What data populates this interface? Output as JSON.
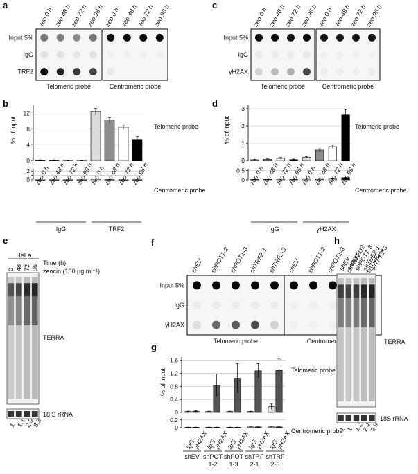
{
  "panels": {
    "a": {
      "letter": "a",
      "cols": [
        "zeo 0 h",
        "zeo 48 h",
        "zeo 72 h",
        "zeo 96 h",
        "zeo 0 h",
        "zeo 48 h",
        "zeo 72 h",
        "zeo 96 h"
      ],
      "rows": [
        "Input 5%",
        "IgG",
        "TRF2"
      ],
      "probe_left": "Telomeric probe",
      "probe_right": "Centromeric probe",
      "dots": [
        [
          0.55,
          0.5,
          0.45,
          0.55,
          1,
          1,
          1,
          1
        ],
        [
          0.08,
          0.08,
          0.06,
          0.08,
          0.02,
          0.02,
          0.02,
          0.02
        ],
        [
          1,
          0.9,
          0.8,
          0.75,
          0.05,
          0,
          0,
          0
        ]
      ]
    },
    "c": {
      "letter": "c",
      "cols": [
        "zeo 0 h",
        "zeo 48 h",
        "zeo 72 h",
        "zeo 96 h",
        "zeo 0 h",
        "zeo 48 h",
        "zeo 72 h",
        "zeo 96 h"
      ],
      "rows": [
        "Input 5%",
        "IgG",
        "γH2AX"
      ],
      "probe_left": "Telomeric probe",
      "probe_right": "Centromeric probe",
      "dots": [
        [
          1,
          1,
          0.95,
          1,
          0.95,
          0.95,
          0.95,
          0.95
        ],
        [
          0.04,
          0.04,
          0.04,
          0.05,
          0.02,
          0.02,
          0.02,
          0.02
        ],
        [
          0.15,
          0.25,
          0.3,
          0.75,
          0.03,
          0.03,
          0.03,
          0.04
        ]
      ]
    },
    "e": {
      "letter": "e",
      "cell": "HeLa",
      "lanes": [
        "0",
        "48",
        "72",
        "96"
      ],
      "time_label": "Time (h)",
      "zeocin_label": "zeocin (100 μg ml⁻¹)",
      "terra": "TERRA",
      "rrna": "18 S rRNA",
      "quant": [
        "1",
        "1.1",
        "2.9",
        "3.3"
      ]
    },
    "f": {
      "letter": "f",
      "cols": [
        "shEV",
        "shPOT1-2",
        "shPOT1-3",
        "shTRF2-1",
        "shTRF2-3",
        "shEV",
        "shPOT1-2",
        "shPOT1-3",
        "shTRF2-1",
        "shTRF2-3"
      ],
      "rows": [
        "Input 5%",
        "IgG",
        "γH2AX"
      ],
      "probe_left": "Telomeric probe",
      "probe_right": "Centromeric probe",
      "dots": [
        [
          1,
          1,
          1,
          1,
          1,
          1,
          1,
          1,
          0.95,
          0.95
        ],
        [
          0.04,
          0.04,
          0.04,
          0.04,
          0.04,
          0.02,
          0.02,
          0.02,
          0.02,
          0.02
        ],
        [
          0.1,
          0.6,
          0.65,
          0.7,
          0.15,
          0.02,
          0.02,
          0.02,
          0.02,
          0.02
        ]
      ]
    },
    "h": {
      "letter": "h",
      "lanes": [
        "shEV",
        "shPOT1-2",
        "shPOT1-3",
        "shTRF2-1",
        "shTRF2-3"
      ],
      "terra": "TERRA",
      "rrna": "18S rRNA",
      "quant": [
        "1",
        "1",
        "1.2",
        "2.4",
        "2.9"
      ]
    }
  },
  "chart_data": [
    {
      "panel": "b",
      "type": "bar",
      "ylabel": "% of input",
      "categories": [
        "zeo 0 h",
        "zeo 48 h",
        "zeo 72 h",
        "zeo 96 h",
        "zeo 0 h",
        "zeo 48 h",
        "zeo 72 h",
        "zeo 96 h"
      ],
      "groups": [
        "IgG",
        "TRF2"
      ],
      "colors": [
        "#dcdcdc",
        "#8c8c8c",
        "#ffffff",
        "#000000"
      ],
      "top": {
        "label": "Telomeric probe",
        "ylim": [
          0,
          14
        ],
        "ticks": [
          "0",
          "4",
          "8",
          "12"
        ],
        "values": [
          0.1,
          0.1,
          0.05,
          0.05,
          12.4,
          10.2,
          8.4,
          5.3
        ],
        "errors": [
          0.05,
          0.05,
          0.05,
          0.05,
          0.8,
          0.7,
          0.6,
          0.7
        ]
      },
      "bottom": {
        "label": "Centromeric probe",
        "ylim": [
          0,
          2.5
        ],
        "ticks": [
          "0",
          "1",
          "2"
        ],
        "values": [
          0.02,
          0.02,
          0.02,
          0.02,
          0.22,
          0.05,
          0.03,
          0.03
        ],
        "errors": [
          0.01,
          0.01,
          0.01,
          0.01,
          0.05,
          0.01,
          0.01,
          0.01
        ]
      }
    },
    {
      "panel": "d",
      "type": "bar",
      "ylabel": "% of input",
      "categories": [
        "zeo 0 h",
        "zeo 48 h",
        "zeo 72 h",
        "zeo 96 h",
        "zeo 0 h",
        "zeo 48 h",
        "zeo 72 h",
        "zeo 96 h"
      ],
      "groups": [
        "IgG",
        "γH2AX"
      ],
      "colors": [
        "#dcdcdc",
        "#8c8c8c",
        "#ffffff",
        "#000000"
      ],
      "top": {
        "label": "Telomeric probe",
        "ylim": [
          0,
          3.2
        ],
        "ticks": [
          "0",
          "1",
          "2",
          "3"
        ],
        "values": [
          0.04,
          0.06,
          0.12,
          0.05,
          0.18,
          0.6,
          0.8,
          2.65
        ],
        "errors": [
          0.02,
          0.03,
          0.05,
          0.03,
          0.04,
          0.08,
          0.1,
          0.3
        ]
      },
      "bottom": {
        "label": "Centromeric probe",
        "ylim": [
          0,
          0.6
        ],
        "ticks": [
          "0",
          "0.5"
        ],
        "values": [
          0.02,
          0.03,
          0.04,
          0.02,
          0.05,
          0.06,
          0.08,
          0.12
        ],
        "errors": [
          0.01,
          0.01,
          0.01,
          0.01,
          0.02,
          0.02,
          0.02,
          0.02
        ]
      }
    },
    {
      "panel": "g",
      "type": "bar",
      "ylabel": "% of input",
      "categories": [
        "IgG",
        "γH2AX",
        "IgG",
        "γH2AX",
        "IgG",
        "γH2AX",
        "IgG",
        "γH2AX",
        "IgG",
        "γH2AX"
      ],
      "groups": [
        "shEV",
        "shPOT 1-2",
        "shPOT 1-3",
        "shTRF 2-1",
        "shTRF 2-3"
      ],
      "group_lines": [
        [
          "shEV",
          ""
        ],
        [
          "shPOT",
          "1-2"
        ],
        [
          "shPOT",
          "1-3"
        ],
        [
          "shTRF",
          "2-1"
        ],
        [
          "shTRF",
          "2-3"
        ]
      ],
      "colors": [
        "#dcdcdc",
        "#555555"
      ],
      "top": {
        "label": "Telomeric probe",
        "ylim": [
          0,
          1.7
        ],
        "ticks": [
          "0",
          "0.4",
          "0.8",
          "1.2",
          "1.6"
        ],
        "values": [
          0.03,
          0.04,
          0.03,
          0.83,
          0.03,
          1.05,
          0.03,
          1.28,
          0.18,
          1.29
        ],
        "errors": [
          0.01,
          0.02,
          0.01,
          0.35,
          0.01,
          0.45,
          0.01,
          0.22,
          0.08,
          0.35
        ]
      },
      "bottom": {
        "label": "Centromeric probe",
        "ylim": [
          0,
          0.25
        ],
        "ticks": [
          "0",
          "0.2"
        ],
        "values": [
          0.01,
          0.01,
          0.01,
          0.01,
          0.01,
          0.01,
          0.02,
          0.02,
          0.02,
          0.02
        ],
        "errors": [
          0.005,
          0.005,
          0.005,
          0.005,
          0.005,
          0.005,
          0.005,
          0.005,
          0.005,
          0.005
        ]
      }
    }
  ]
}
